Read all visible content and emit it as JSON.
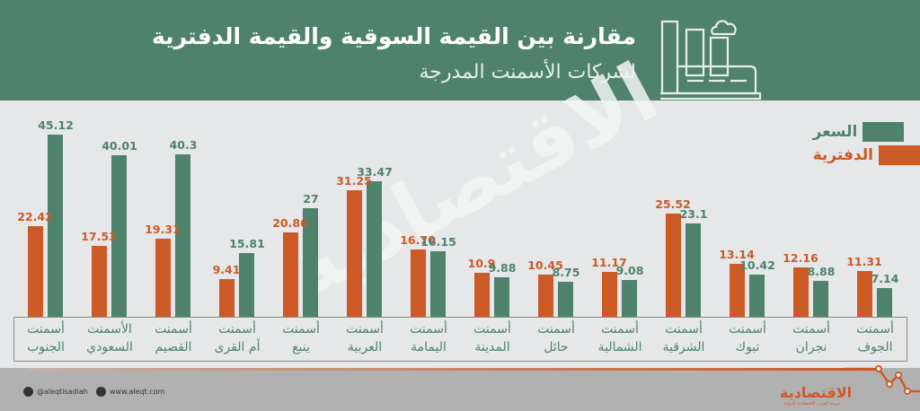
{
  "header": {
    "title": "مقارنة بين القيمة السوقية والقيمة الدفترية",
    "subtitle": "لشركات الأسمنت المدرجة",
    "icon": "factory-icon"
  },
  "legend": [
    {
      "label": "السعر",
      "color": "#4e826c"
    },
    {
      "label": "الدفترية",
      "color": "#cc5a27"
    }
  ],
  "watermark": "الاقتصادية",
  "footer": {
    "twitter": "@aleqtisadiah",
    "website": "www.aleqt.com",
    "logo": "الاقتصادية",
    "logo_sub": "جريدة العرب الاقتصادية الدولية"
  },
  "colors": {
    "price": "#4e826c",
    "book": "#cc5a27",
    "header_bg": "#4e826c",
    "chart_bg": "#e6e7e8",
    "footer_bg": "#b1b1b1"
  },
  "chart_data": {
    "type": "bar",
    "title": "مقارنة بين القيمة السوقية والقيمة الدفترية لشركات الأسمنت المدرجة",
    "xlabel": "",
    "ylabel": "",
    "categories": [
      "أسمنت الجنوب",
      "الأسمنت السعودي",
      "أسمنت القصيم",
      "أسمنت أم القرى",
      "أسمنت ينبع",
      "أسمنت العربية",
      "أسمنت اليمامة",
      "أسمنت المدينة",
      "أسمنت حائل",
      "أسمنت الشمالية",
      "أسمنت الشرقية",
      "أسمنت تبوك",
      "أسمنت نجران",
      "أسمنت الجوف"
    ],
    "series": [
      {
        "name": "الدفترية",
        "color": "#cc5a27",
        "values": [
          22.42,
          17.53,
          19.31,
          9.41,
          20.86,
          31.25,
          16.7,
          10.9,
          10.45,
          11.17,
          25.52,
          13.14,
          12.16,
          11.31
        ],
        "labels": [
          "22.42",
          "17.53",
          "19.31",
          "9.41",
          "20.86",
          "31.25",
          "16.70",
          "10.9",
          "10.45",
          "11.17",
          "25.52",
          "13.14",
          "12.16",
          "11.31"
        ]
      },
      {
        "name": "السعر",
        "color": "#4e826c",
        "values": [
          45.12,
          40.01,
          40.3,
          15.81,
          27,
          33.47,
          16.15,
          9.88,
          8.75,
          9.08,
          23.1,
          10.42,
          8.88,
          7.14
        ],
        "labels": [
          "45.12",
          "40.01",
          "40.3",
          "15.81",
          "27",
          "33.47",
          "16.15",
          "9.88",
          "8.75",
          "9.08",
          "23.1",
          "10.42",
          "8.88",
          "7.14"
        ]
      }
    ],
    "ylim": [
      0,
      50
    ],
    "grid": false,
    "legend_position": "top-right",
    "value_labels": true
  },
  "categories_lines": [
    [
      "أسمنت",
      "الجنوب"
    ],
    [
      "الأسمنت",
      "السعودي"
    ],
    [
      "أسمنت",
      "القصيم"
    ],
    [
      "أسمنت",
      "أم القرى"
    ],
    [
      "أسمنت",
      "ينبع"
    ],
    [
      "أسمنت",
      "العربية"
    ],
    [
      "أسمنت",
      "اليمامة"
    ],
    [
      "أسمنت",
      "المدينة"
    ],
    [
      "أسمنت",
      "حائل"
    ],
    [
      "أسمنت",
      "الشمالية"
    ],
    [
      "أسمنت",
      "الشرقية"
    ],
    [
      "أسمنت",
      "تبوك"
    ],
    [
      "أسمنت",
      "نجران"
    ],
    [
      "أسمنت",
      "الجوف"
    ]
  ]
}
